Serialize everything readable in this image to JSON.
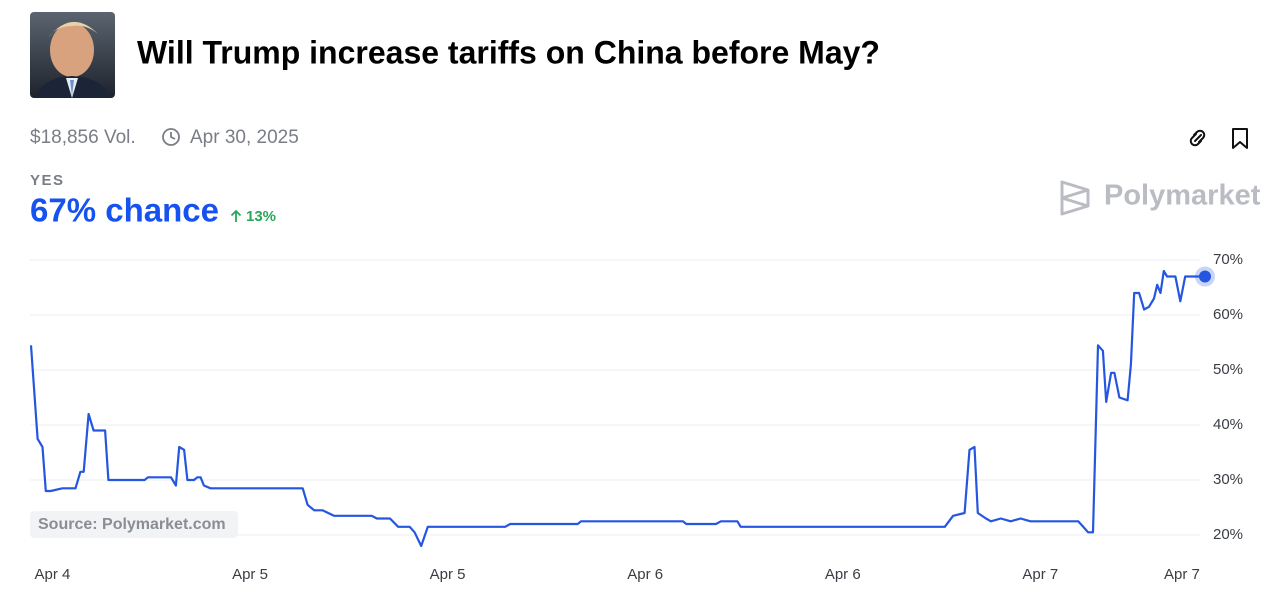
{
  "header": {
    "title": "Will Trump increase tariffs on China before May?",
    "volume": "$18,856 Vol.",
    "end_date": "Apr 30, 2025",
    "outcome": "YES",
    "chance": "67% chance",
    "change": "13%",
    "brand": "Polymarket",
    "source": "Source: Polymarket.com"
  },
  "chart_data": {
    "type": "line",
    "series": [
      {
        "name": "YES",
        "color": "#2456e0",
        "x": [
          -1.3,
          -0.9,
          -0.6,
          -0.4,
          -0.1,
          0.6,
          1.4,
          1.7,
          1.9,
          2.2,
          2.5,
          3.2,
          3.4,
          5.6,
          5.8,
          7.2,
          7.5,
          7.7,
          8.0,
          8.2,
          8.6,
          8.8,
          9.0,
          9.2,
          9.6,
          15.2,
          15.5,
          15.9,
          16.4,
          17.1,
          19.4,
          19.7,
          20.5,
          21.0,
          21.7,
          22.0,
          22.4,
          22.8,
          27.5,
          27.8,
          31.9,
          32.1,
          38.3,
          38.5,
          40.3,
          40.6,
          41.6,
          41.8,
          54.2,
          54.7,
          55.4,
          55.7,
          56.0,
          56.2,
          56.7,
          57.0,
          57.6,
          58.2,
          58.8,
          59.4,
          62.3,
          62.6,
          62.9,
          63.2,
          63.5,
          63.8,
          64.0,
          64.3,
          64.5,
          64.8,
          65.3,
          65.5,
          65.7,
          66.0,
          66.3,
          66.6,
          66.9,
          67.1,
          67.3,
          67.5,
          67.7,
          68.2,
          68.5,
          68.8,
          70.0
        ],
        "values": [
          54.5,
          37.5,
          36,
          28,
          28,
          28.5,
          28.5,
          31.5,
          31.5,
          42,
          39,
          39,
          30,
          30,
          30.5,
          30.5,
          29,
          36,
          35.5,
          30,
          30,
          30.5,
          30.5,
          29,
          28.5,
          28.5,
          25.5,
          24.5,
          24.5,
          23.5,
          23.5,
          23,
          23,
          21.5,
          21.5,
          20.5,
          18,
          21.5,
          21.5,
          22,
          22,
          22.5,
          22.5,
          22,
          22,
          22.5,
          22.5,
          21.5,
          21.5,
          23.5,
          24,
          35.5,
          36,
          24,
          23,
          22.5,
          23,
          22.5,
          23,
          22.5,
          22.5,
          21.5,
          20.5,
          20.5,
          54.5,
          53.5,
          44.2,
          49.5,
          49.5,
          45,
          44.5,
          51,
          64,
          64,
          61,
          61.5,
          63,
          65.5,
          64,
          68,
          67,
          67,
          62.5,
          67,
          67
        ]
      }
    ],
    "xlim": [
      -1.3,
      70.0
    ],
    "xticks": [
      {
        "value": 0,
        "label": "Apr 4"
      },
      {
        "value": 12,
        "label": "Apr 5"
      },
      {
        "value": 24,
        "label": "Apr 5"
      },
      {
        "value": 36,
        "label": "Apr 6"
      },
      {
        "value": 48,
        "label": "Apr 6"
      },
      {
        "value": 60,
        "label": "Apr 7"
      },
      {
        "value": 68.6,
        "label": "Apr 7"
      }
    ],
    "ylim": [
      17.6,
      72
    ],
    "yticks": [
      {
        "value": 20,
        "label": "20%"
      },
      {
        "value": 30,
        "label": "30%"
      },
      {
        "value": 40,
        "label": "40%"
      },
      {
        "value": 50,
        "label": "50%"
      },
      {
        "value": 60,
        "label": "60%"
      },
      {
        "value": 70,
        "label": "70%"
      }
    ],
    "grid": true
  }
}
